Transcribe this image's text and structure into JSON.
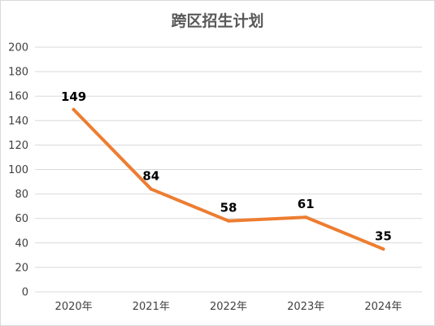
{
  "chart_data": {
    "type": "line",
    "title": "跨区招生计划",
    "categories": [
      "2020年",
      "2021年",
      "2022年",
      "2023年",
      "2024年"
    ],
    "series": [
      {
        "values": [
          149,
          84,
          58,
          61,
          35
        ]
      }
    ],
    "data_labels": [
      "149",
      "84",
      "58",
      "61",
      "35"
    ],
    "ylim": [
      0,
      200
    ],
    "ystep": 20,
    "y_tick_labels": [
      "0",
      "20",
      "40",
      "60",
      "80",
      "100",
      "120",
      "140",
      "160",
      "180",
      "200"
    ],
    "xlabel": "",
    "ylabel": "",
    "grid": true,
    "legend": "none",
    "line_color": "#ED7D31",
    "grid_color": "#D9D9D9"
  }
}
